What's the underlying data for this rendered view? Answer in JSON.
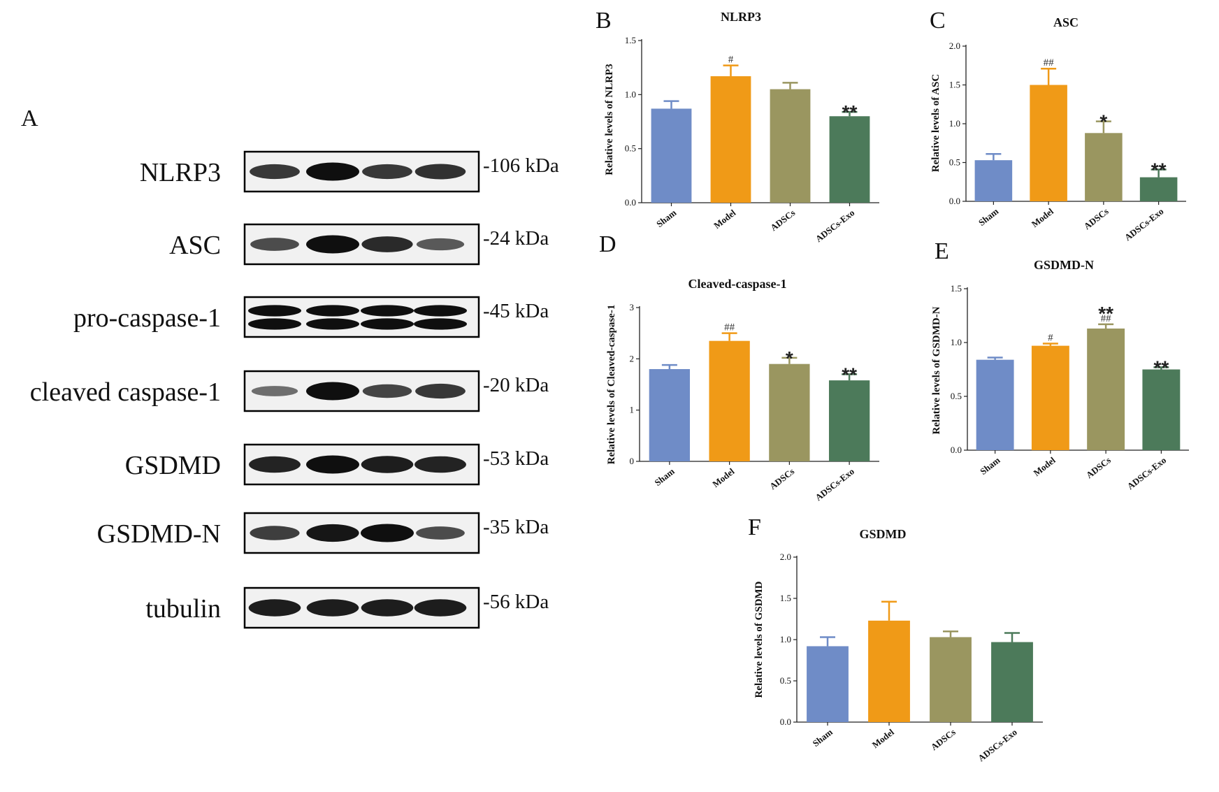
{
  "blot": {
    "panel": "A",
    "rows": [
      {
        "protein": "NLRP3",
        "kda": "-106 kDa",
        "bands": [
          0.7,
          1.0,
          0.7,
          0.75
        ],
        "double": false
      },
      {
        "protein": "ASC",
        "kda": "-24 kDa",
        "bands": [
          0.55,
          1.0,
          0.8,
          0.45
        ],
        "double": false
      },
      {
        "protein": "pro-caspase-1",
        "kda": "-45 kDa",
        "bands": [
          1.0,
          1.0,
          1.0,
          1.0
        ],
        "double": true
      },
      {
        "protein": "cleaved caspase-1",
        "kda": "-20 kDa",
        "bands": [
          0.3,
          1.0,
          0.6,
          0.7
        ],
        "double": false
      },
      {
        "protein": "GSDMD",
        "kda": "-53 kDa",
        "bands": [
          0.85,
          1.0,
          0.9,
          0.85
        ],
        "double": false
      },
      {
        "protein": "GSDMD-N",
        "kda": "-35 kDa",
        "bands": [
          0.65,
          0.95,
          1.0,
          0.55
        ],
        "double": false
      },
      {
        "protein": "tubulin",
        "kda": "-56 kDa",
        "bands": [
          0.9,
          0.9,
          0.9,
          0.9
        ],
        "double": false
      }
    ]
  },
  "colors": [
    "#6f8cc7",
    "#f09a17",
    "#9a9660",
    "#4c7a5a"
  ],
  "chart_data": [
    {
      "panel": "B",
      "type": "bar",
      "title": "NLRP3",
      "ylabel": "Relative levels of NLRP3",
      "categories": [
        "Sham",
        "Model",
        "ADSCs",
        "ADSCs-Exo"
      ],
      "values": [
        0.87,
        1.17,
        1.05,
        0.8
      ],
      "errors": [
        0.07,
        0.1,
        0.06,
        0.04
      ],
      "ylim": [
        0,
        1.5
      ],
      "yticks": [
        "0.0",
        "0.5",
        "1.0",
        "1.5"
      ],
      "annotations": [
        {
          "index": 1,
          "text": "#"
        },
        {
          "index": 3,
          "text": "**"
        }
      ]
    },
    {
      "panel": "C",
      "type": "bar",
      "title": "ASC",
      "ylabel": "Relative levels of ASC",
      "categories": [
        "Sham",
        "Model",
        "ADSCs",
        "ADSCs-Exo"
      ],
      "values": [
        0.53,
        1.5,
        0.88,
        0.31
      ],
      "errors": [
        0.08,
        0.21,
        0.15,
        0.1
      ],
      "ylim": [
        0,
        2.0
      ],
      "yticks": [
        "0.0",
        "0.5",
        "1.0",
        "1.5",
        "2.0"
      ],
      "annotations": [
        {
          "index": 1,
          "text": "##"
        },
        {
          "index": 2,
          "text": "*"
        },
        {
          "index": 3,
          "text": "**"
        }
      ]
    },
    {
      "panel": "D",
      "type": "bar",
      "title": "Cleaved-caspase-1",
      "ylabel": "Relative levels of Cleaved-caspase-1",
      "categories": [
        "Sham",
        "Model",
        "ADSCs",
        "ADSCs-Exo"
      ],
      "values": [
        1.8,
        2.35,
        1.9,
        1.58
      ],
      "errors": [
        0.08,
        0.15,
        0.12,
        0.12
      ],
      "ylim": [
        0,
        3
      ],
      "yticks": [
        "0",
        "1",
        "2",
        "3"
      ],
      "annotations": [
        {
          "index": 1,
          "text": "##"
        },
        {
          "index": 2,
          "text": "*"
        },
        {
          "index": 3,
          "text": "**"
        }
      ]
    },
    {
      "panel": "E",
      "type": "bar",
      "title": "GSDMD-N",
      "ylabel": "Relative levels of GSDMD-N",
      "categories": [
        "Sham",
        "Model",
        "ADSCs",
        "ADSCs-Exo"
      ],
      "values": [
        0.84,
        0.97,
        1.13,
        0.75
      ],
      "errors": [
        0.02,
        0.02,
        0.04,
        0.02
      ],
      "ylim": [
        0,
        1.5
      ],
      "yticks": [
        "0.0",
        "0.5",
        "1.0",
        "1.5"
      ],
      "annotations": [
        {
          "index": 1,
          "text": "#"
        },
        {
          "index": 2,
          "text": "##"
        },
        {
          "index": 2,
          "text": "**"
        },
        {
          "index": 3,
          "text": "**"
        }
      ]
    },
    {
      "panel": "F",
      "type": "bar",
      "title": "GSDMD",
      "ylabel": "Relative levels of GSDMD",
      "categories": [
        "Sham",
        "Model",
        "ADSCs",
        "ADSCs-Exo"
      ],
      "values": [
        0.92,
        1.23,
        1.03,
        0.97
      ],
      "errors": [
        0.11,
        0.23,
        0.07,
        0.11
      ],
      "ylim": [
        0,
        2.0
      ],
      "yticks": [
        "0.0",
        "0.5",
        "1.0",
        "1.5",
        "2.0"
      ],
      "annotations": []
    }
  ]
}
